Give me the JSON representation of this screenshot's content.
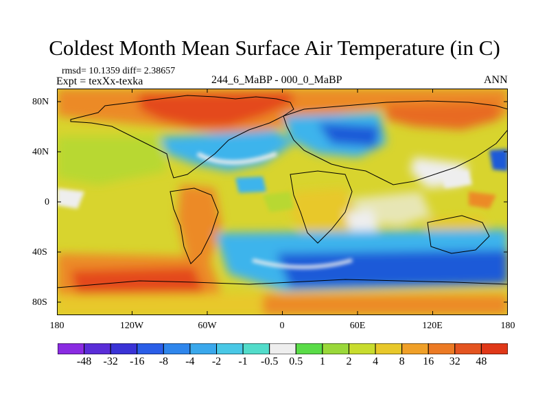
{
  "title": "Coldest Month Mean Surface Air Temperature (in C)",
  "stats": "rmsd= 10.1359 diff= 2.38657",
  "experiment": "Expt = texXx-texka",
  "subtitle_center": "244_6_MaBP - 000_0_MaBP",
  "subtitle_right": "ANN",
  "axes": {
    "y_labels": [
      "80N",
      "40N",
      "0",
      "40S",
      "80S"
    ],
    "x_labels": [
      "180",
      "120W",
      "60W",
      "0",
      "60E",
      "120E",
      "180"
    ]
  },
  "colorbar": {
    "labels": [
      "-48",
      "-32",
      "-16",
      "-8",
      "-4",
      "-2",
      "-1",
      "-0.5",
      "0.5",
      "1",
      "2",
      "4",
      "8",
      "16",
      "32",
      "48"
    ],
    "colors": [
      "#8a2be2",
      "#5a2dd8",
      "#3a33d6",
      "#2a5ee8",
      "#2f86ec",
      "#3aa8ec",
      "#49c8e6",
      "#52dcca",
      "#eeeeee",
      "#5adc48",
      "#9ad83a",
      "#c8dc2e",
      "#e8c82a",
      "#f0a028",
      "#ec7a24",
      "#e45420",
      "#e03818"
    ]
  },
  "palette": {
    "polar_blue": "#1e5ad8",
    "cold_cyan": "#3cb4ec",
    "neutral": "#eeeeee",
    "temperate_yellow": "#d8d42e",
    "warm_orange": "#ec8a26",
    "hot_red": "#e44a1c",
    "coast": "#000000"
  }
}
